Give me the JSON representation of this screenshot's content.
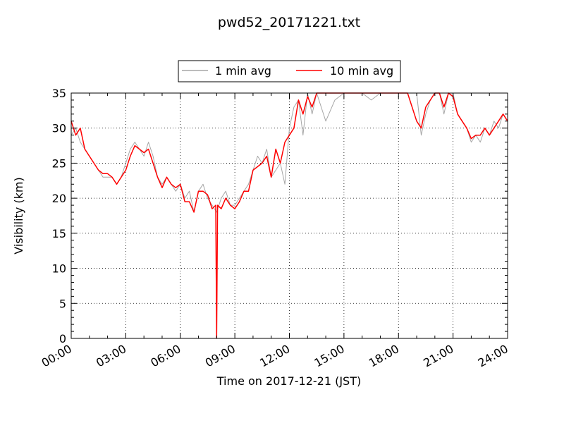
{
  "chart_data": {
    "type": "line",
    "title": "pwd52_20171221.txt",
    "xlabel": "Time on 2017-12-21 (JST)",
    "ylabel": "Visibility (km)",
    "xlim": [
      "00:00",
      "24:00"
    ],
    "ylim": [
      0,
      35
    ],
    "x_ticks": [
      "00:00",
      "03:00",
      "06:00",
      "09:00",
      "12:00",
      "15:00",
      "18:00",
      "21:00",
      "24:00"
    ],
    "y_ticks": [
      "0",
      "5",
      "10",
      "15",
      "20",
      "25",
      "30",
      "35"
    ],
    "grid": true,
    "legend_position": "top-center",
    "x_units": "hours",
    "series": [
      {
        "name": "1 min avg",
        "color": "#a6a6a6",
        "x": [
          0.0,
          0.25,
          0.5,
          0.75,
          1.0,
          1.25,
          1.5,
          1.75,
          2.0,
          2.25,
          2.5,
          2.75,
          3.0,
          3.25,
          3.5,
          3.75,
          4.0,
          4.25,
          4.5,
          4.75,
          5.0,
          5.25,
          5.5,
          5.75,
          6.0,
          6.25,
          6.5,
          6.75,
          7.0,
          7.25,
          7.5,
          7.75,
          8.0,
          8.25,
          8.5,
          8.75,
          9.0,
          9.25,
          9.5,
          9.75,
          10.0,
          10.25,
          10.5,
          10.75,
          11.0,
          11.25,
          11.5,
          11.75,
          12.0,
          12.25,
          12.5,
          12.75,
          13.0,
          13.25,
          13.5,
          13.75,
          14.0,
          14.5,
          15.0,
          15.5,
          16.0,
          16.5,
          17.0,
          17.5,
          18.0,
          18.5,
          19.0,
          19.25,
          19.5,
          19.75,
          20.0,
          20.25,
          20.5,
          20.75,
          21.0,
          21.25,
          21.5,
          21.75,
          22.0,
          22.25,
          22.5,
          22.75,
          23.0,
          23.25,
          23.5,
          23.75,
          24.0
        ],
        "values": [
          29,
          30,
          28,
          27,
          26,
          25,
          24,
          23,
          23,
          23,
          22,
          23,
          25,
          27,
          28,
          27,
          26,
          28,
          26,
          23,
          22,
          23,
          22,
          21,
          22,
          20,
          21,
          18,
          21,
          22,
          20,
          19,
          18,
          20,
          21,
          19,
          19,
          20,
          21,
          22,
          24,
          26,
          25,
          27,
          23,
          24,
          25,
          22,
          30,
          33,
          34,
          29,
          35,
          32,
          35,
          33,
          31,
          34,
          35,
          35,
          35,
          34,
          35,
          35,
          35,
          35,
          35,
          29,
          32,
          34,
          35,
          35,
          32,
          35,
          35,
          32,
          31,
          30,
          28,
          29,
          28,
          30,
          29,
          31,
          30,
          32,
          31
        ]
      },
      {
        "name": "10 min avg",
        "color": "#ff0000",
        "x": [
          0.0,
          0.25,
          0.5,
          0.75,
          1.0,
          1.25,
          1.5,
          1.75,
          2.0,
          2.25,
          2.5,
          2.75,
          3.0,
          3.25,
          3.5,
          3.75,
          4.0,
          4.25,
          4.5,
          4.75,
          5.0,
          5.25,
          5.5,
          5.75,
          6.0,
          6.25,
          6.5,
          6.75,
          7.0,
          7.25,
          7.5,
          7.75,
          7.95,
          8.0,
          8.05,
          8.25,
          8.5,
          8.75,
          9.0,
          9.25,
          9.5,
          9.75,
          10.0,
          10.25,
          10.5,
          10.75,
          11.0,
          11.25,
          11.5,
          11.75,
          12.0,
          12.25,
          12.5,
          12.75,
          13.0,
          13.25,
          13.5,
          13.75,
          14.0,
          14.5,
          15.0,
          15.5,
          16.0,
          16.5,
          17.0,
          17.5,
          18.0,
          18.5,
          19.0,
          19.25,
          19.5,
          19.75,
          20.0,
          20.25,
          20.5,
          20.75,
          21.0,
          21.25,
          21.5,
          21.75,
          22.0,
          22.25,
          22.5,
          22.75,
          23.0,
          23.25,
          23.5,
          23.75,
          24.0
        ],
        "values": [
          31,
          29,
          30,
          27,
          26,
          25,
          24,
          23.5,
          23.5,
          23,
          22,
          23,
          24,
          26,
          27.5,
          27,
          26.5,
          27,
          25,
          23,
          21.5,
          23,
          22,
          21.5,
          22,
          19.5,
          19.5,
          18,
          21,
          21,
          20.5,
          18.5,
          19,
          0,
          19,
          18.5,
          20,
          19,
          18.5,
          19.5,
          21,
          21,
          24,
          24.5,
          25,
          26,
          23,
          27,
          25,
          28,
          29,
          30,
          34,
          32,
          34.5,
          33,
          35,
          35,
          35,
          35,
          35,
          35,
          35,
          35,
          35,
          35,
          35,
          35,
          31,
          30,
          33,
          34,
          35,
          35,
          33,
          35,
          34.5,
          32,
          31,
          30,
          28.5,
          29,
          29,
          30,
          29,
          30,
          31,
          32,
          31
        ]
      }
    ]
  }
}
